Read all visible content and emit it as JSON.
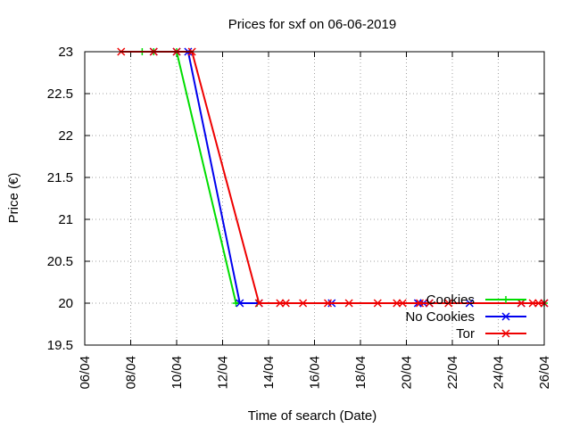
{
  "chart_data": {
    "type": "line",
    "title": "Prices for sxf on 06-06-2019",
    "xlabel": "Time of search (Date)",
    "ylabel": "Price (€)",
    "x_ticks": [
      "06/04",
      "08/04",
      "10/04",
      "12/04",
      "14/04",
      "16/04",
      "18/04",
      "20/04",
      "22/04",
      "24/04",
      "26/04"
    ],
    "xlim": [
      "06/04",
      "26/04"
    ],
    "y_ticks": [
      "19.5",
      "20",
      "20.5",
      "21",
      "21.5",
      "22",
      "22.5",
      "23"
    ],
    "ylim": [
      19.5,
      23
    ],
    "grid": true,
    "legend_position": "bottom-right",
    "series": [
      {
        "name": "Cookies",
        "color": "#00dd00",
        "marker": "plus",
        "points": [
          {
            "x": "08/04 12:00",
            "y": 23
          },
          {
            "x": "09/04",
            "y": 23
          },
          {
            "x": "10/04",
            "y": 23
          },
          {
            "x": "12/04 14:00",
            "y": 20
          },
          {
            "x": "13/04 12:00",
            "y": 20
          },
          {
            "x": "26/04",
            "y": 20
          }
        ]
      },
      {
        "name": "No Cookies",
        "color": "#0000ee",
        "marker": "x",
        "points": [
          {
            "x": "09/04",
            "y": 23
          },
          {
            "x": "10/04",
            "y": 23
          },
          {
            "x": "10/04 12:00",
            "y": 23
          },
          {
            "x": "12/04 18:00",
            "y": 20
          },
          {
            "x": "13/04 14:00",
            "y": 20
          },
          {
            "x": "16/04 18:00",
            "y": 20
          },
          {
            "x": "20/04 12:00",
            "y": 20
          },
          {
            "x": "20/04 18:00",
            "y": 20
          },
          {
            "x": "21/04",
            "y": 20
          },
          {
            "x": "22/04 18:00",
            "y": 20
          },
          {
            "x": "25/04",
            "y": 20
          },
          {
            "x": "26/04",
            "y": 20
          }
        ]
      },
      {
        "name": "Tor",
        "color": "#ee0000",
        "marker": "x",
        "points": [
          {
            "x": "07/04 14:00",
            "y": 23
          },
          {
            "x": "09/04",
            "y": 23
          },
          {
            "x": "10/04",
            "y": 23
          },
          {
            "x": "10/04 16:00",
            "y": 23
          },
          {
            "x": "13/04 14:00",
            "y": 20
          },
          {
            "x": "14/04 12:00",
            "y": 20
          },
          {
            "x": "14/04 18:00",
            "y": 20
          },
          {
            "x": "15/04 12:00",
            "y": 20
          },
          {
            "x": "16/04 14:00",
            "y": 20
          },
          {
            "x": "17/04 12:00",
            "y": 20
          },
          {
            "x": "18/04 18:00",
            "y": 20
          },
          {
            "x": "19/04 14:00",
            "y": 20
          },
          {
            "x": "19/04 20:00",
            "y": 20
          },
          {
            "x": "20/04 14:00",
            "y": 20
          },
          {
            "x": "21/04",
            "y": 20
          },
          {
            "x": "21/04 20:00",
            "y": 20
          },
          {
            "x": "25/04",
            "y": 20
          },
          {
            "x": "25/04 12:00",
            "y": 20
          },
          {
            "x": "25/04 18:00",
            "y": 20
          },
          {
            "x": "26/04",
            "y": 20
          }
        ]
      }
    ]
  }
}
